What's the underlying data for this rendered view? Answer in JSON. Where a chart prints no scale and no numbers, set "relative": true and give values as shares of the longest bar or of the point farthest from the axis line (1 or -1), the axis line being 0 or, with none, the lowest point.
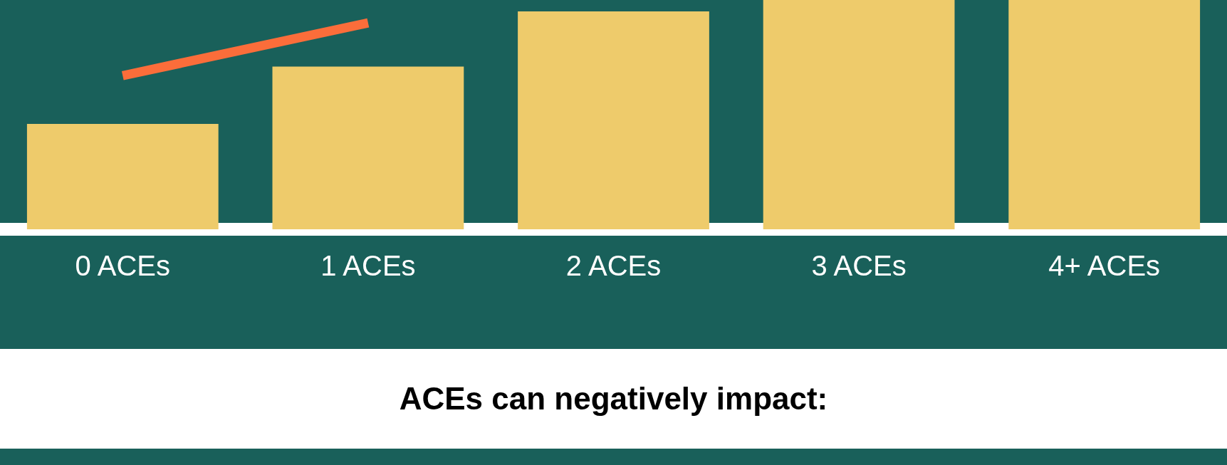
{
  "chart_data": {
    "type": "bar",
    "relative": true,
    "categories": [
      "0 ACEs",
      "1 ACEs",
      "2 ACEs",
      "3 ACEs",
      "4+ ACEs"
    ],
    "series": [
      {
        "color": "#eecb6b",
        "values": [
          0.46,
          0.71,
          0.95,
          1,
          1
        ]
      },
      {
        "type": "line",
        "color": "#fb6d3a",
        "values": [
          0.67,
          0.9,
          null,
          null,
          null
        ]
      }
    ],
    "marker": "none",
    "line_style": "solid",
    "grid": false,
    "legend": false,
    "annotations": [
      "ACEs can negatively impact:"
    ]
  }
}
